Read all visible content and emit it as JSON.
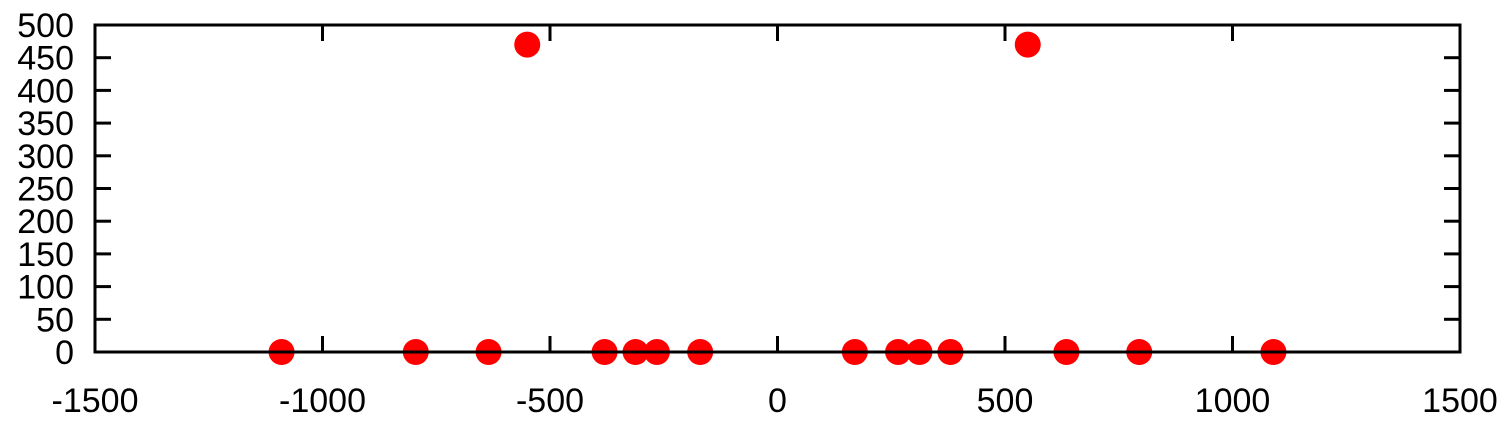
{
  "chart_data": {
    "type": "scatter",
    "title": "",
    "xlabel": "",
    "ylabel": "",
    "xlim": [
      -1500,
      1500
    ],
    "ylim": [
      0,
      500
    ],
    "x_ticks": [
      -1500,
      -1000,
      -500,
      0,
      500,
      1000,
      1500
    ],
    "x_tick_labels": [
      "-1500",
      "-1000",
      "-500",
      "0",
      "500",
      "1000",
      "1500"
    ],
    "y_ticks": [
      0,
      50,
      100,
      150,
      200,
      250,
      300,
      350,
      400,
      450,
      500
    ],
    "y_tick_labels": [
      "0",
      "50",
      "100",
      "150",
      "200",
      "250",
      "300",
      "350",
      "400",
      "450",
      "500"
    ],
    "grid": false,
    "legend": "none",
    "series": [
      {
        "color": "#ff0000",
        "marker": "circle",
        "points": [
          {
            "x": -1090,
            "y": 0
          },
          {
            "x": -795,
            "y": 0
          },
          {
            "x": -635,
            "y": 0
          },
          {
            "x": -550,
            "y": 470
          },
          {
            "x": -380,
            "y": 0
          },
          {
            "x": -312,
            "y": 0
          },
          {
            "x": -265,
            "y": 0
          },
          {
            "x": -170,
            "y": 0
          },
          {
            "x": 170,
            "y": 0
          },
          {
            "x": 265,
            "y": 0
          },
          {
            "x": 312,
            "y": 0
          },
          {
            "x": 380,
            "y": 0
          },
          {
            "x": 550,
            "y": 470
          },
          {
            "x": 635,
            "y": 0
          },
          {
            "x": 795,
            "y": 0
          },
          {
            "x": 1090,
            "y": 0
          }
        ]
      }
    ]
  }
}
